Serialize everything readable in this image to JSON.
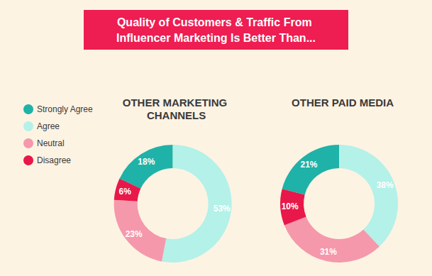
{
  "title": "Quality of Customers & Traffic From Influencer Marketing Is Better Than...",
  "chart_data": [
    {
      "type": "pie",
      "title": "OTHER MARKETING CHANNELS",
      "categories": [
        "Strongly Agree",
        "Agree",
        "Neutral",
        "Disagree"
      ],
      "values": [
        18,
        53,
        23,
        6
      ],
      "value_labels": [
        "18%",
        "53%",
        "23%",
        "6%"
      ],
      "colors": [
        "#1fb2a8",
        "#b3f1e9",
        "#f598ab",
        "#e8184a"
      ],
      "data_labels": true,
      "legend": "left"
    },
    {
      "type": "pie",
      "title": "OTHER PAID MEDIA",
      "categories": [
        "Strongly Agree",
        "Agree",
        "Neutral",
        "Disagree"
      ],
      "values": [
        21,
        38,
        31,
        10
      ],
      "value_labels": [
        "21%",
        "38%",
        "31%",
        "10%"
      ],
      "colors": [
        "#1fb2a8",
        "#b3f1e9",
        "#f598ab",
        "#e8184a"
      ],
      "data_labels": true
    }
  ]
}
